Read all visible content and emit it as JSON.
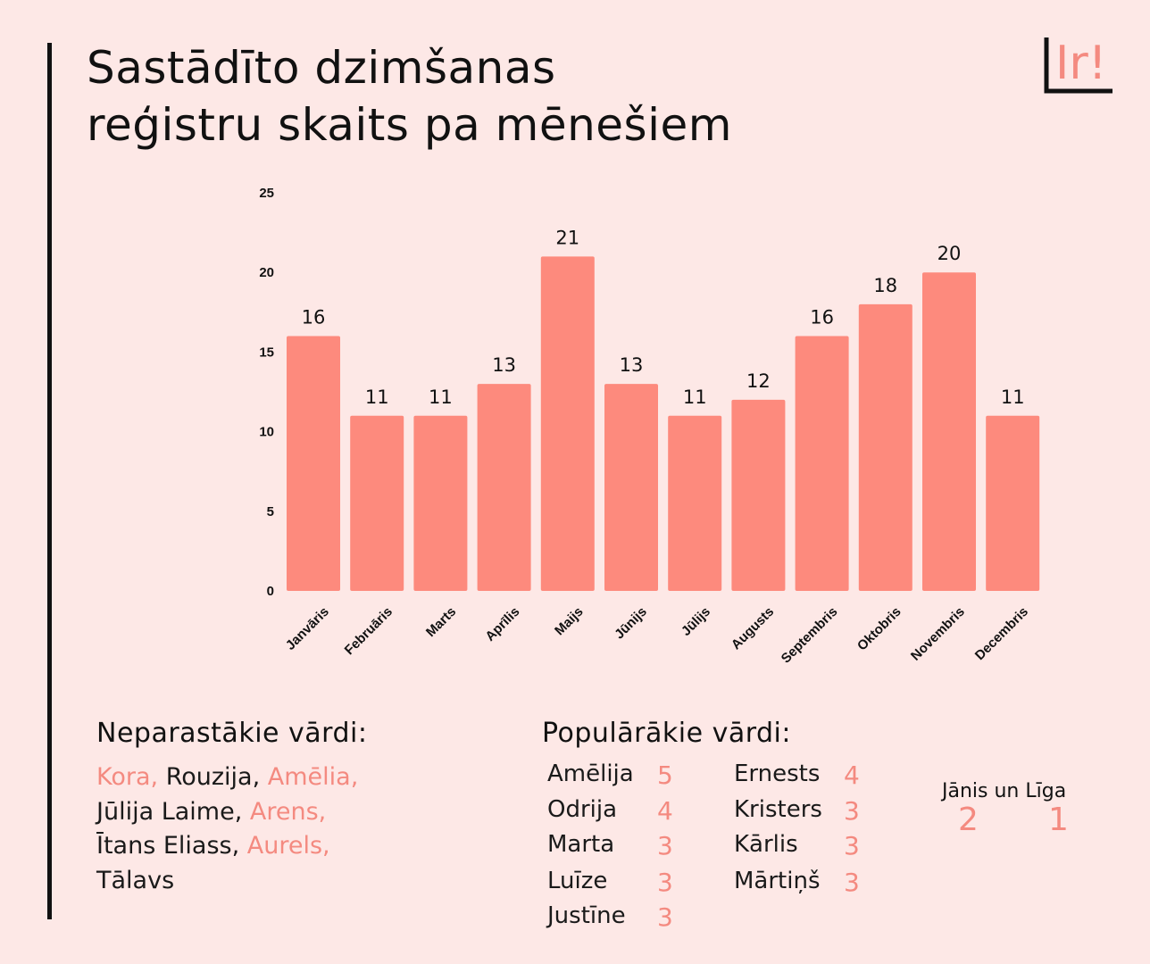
{
  "title_lines": [
    "Sastādīto dzimšanas",
    "reģistru skaits pa mēnešiem"
  ],
  "logo_text": "Ir!",
  "colors": {
    "bar": "#fd8a7d",
    "accent": "#f48a80",
    "background": "#fde8e6",
    "text": "#111111"
  },
  "chart_data": {
    "type": "bar",
    "title": "Sastādīto dzimšanas reģistru skaits pa mēnešiem",
    "categories": [
      "Janvāris",
      "Februāris",
      "Marts",
      "Aprīlis",
      "Maijs",
      "Jūnijs",
      "Jūlijs",
      "Augusts",
      "Septembris",
      "Oktobris",
      "Novembris",
      "Decembris"
    ],
    "values": [
      16,
      11,
      11,
      13,
      21,
      13,
      11,
      12,
      16,
      18,
      20,
      11
    ],
    "yticks": [
      0,
      5,
      10,
      15,
      20,
      25
    ],
    "ylim": [
      0,
      25
    ],
    "xlabel": "",
    "ylabel": "",
    "grid": false,
    "data_labels": true
  },
  "rare_names": {
    "title": "Neparastākie vārdi:",
    "lines": [
      [
        {
          "text": "Kora,",
          "accent": true
        },
        {
          "text": " Rouzija, ",
          "accent": false
        },
        {
          "text": "Amēlia,",
          "accent": true
        }
      ],
      [
        {
          "text": "Jūlija Laime, ",
          "accent": false
        },
        {
          "text": "Arens,",
          "accent": true
        }
      ],
      [
        {
          "text": "Ītans Eliass, ",
          "accent": false
        },
        {
          "text": "Aurels,",
          "accent": true
        }
      ],
      [
        {
          "text": "Tālavs",
          "accent": false
        }
      ]
    ]
  },
  "popular_names": {
    "title": "Populārākie vārdi:",
    "column1": [
      {
        "name": "Amēlija",
        "count": "5"
      },
      {
        "name": "Odrija",
        "count": "4"
      },
      {
        "name": "Marta",
        "count": "3"
      },
      {
        "name": "Luīze",
        "count": "3"
      },
      {
        "name": "Justīne",
        "count": "3"
      }
    ],
    "column2": [
      {
        "name": "Ernests",
        "count": "4"
      },
      {
        "name": "Kristers",
        "count": "3"
      },
      {
        "name": "Kārlis",
        "count": "3"
      },
      {
        "name": "Mārtiņš",
        "count": "3"
      }
    ],
    "special": {
      "label": "Jānis un Līga",
      "janis_count": "2",
      "liga_count": "1"
    }
  }
}
